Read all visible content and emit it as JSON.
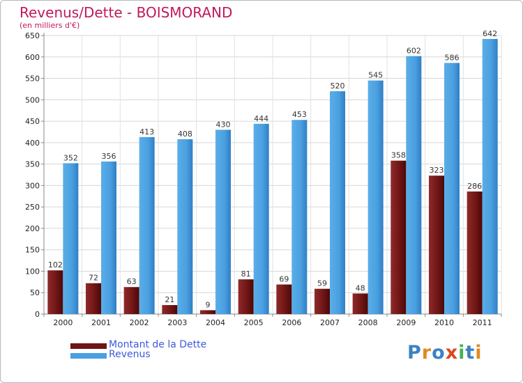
{
  "header": {
    "title": "Revenus/Dette - BOISMORAND",
    "subtitle": "(en milliers d'€)"
  },
  "chart_data": {
    "type": "bar",
    "categories": [
      "2000",
      "2001",
      "2002",
      "2003",
      "2004",
      "2005",
      "2006",
      "2007",
      "2008",
      "2009",
      "2010",
      "2011"
    ],
    "series": [
      {
        "name": "Montant de la Dette",
        "values": [
          102,
          72,
          63,
          21,
          9,
          81,
          69,
          59,
          48,
          358,
          323,
          286
        ],
        "color": "#7a1a1a"
      },
      {
        "name": "Revenus",
        "values": [
          352,
          356,
          413,
          408,
          430,
          444,
          453,
          520,
          545,
          602,
          586,
          642
        ],
        "color": "#4a9fe0"
      }
    ],
    "ylim": [
      0,
      650
    ],
    "yticks": [
      0,
      50,
      100,
      150,
      200,
      250,
      300,
      350,
      400,
      450,
      500,
      550,
      600,
      650
    ],
    "grid": true,
    "legend": "bottom-left"
  },
  "legend": {
    "items": [
      {
        "label": "Montant de la Dette",
        "color": "#7a1a1a"
      },
      {
        "label": "Revenus",
        "color": "#4a9fe0"
      }
    ]
  },
  "logo": {
    "letters": [
      {
        "ch": "P",
        "color": "#3b82c4"
      },
      {
        "ch": "r",
        "color": "#e08a1e"
      },
      {
        "ch": "o",
        "color": "#3b82c4"
      },
      {
        "ch": "x",
        "color": "#e0461e"
      },
      {
        "ch": "i",
        "color": "#4caf50"
      },
      {
        "ch": "t",
        "color": "#3b82c4"
      },
      {
        "ch": "i",
        "color": "#e08a1e"
      }
    ]
  }
}
